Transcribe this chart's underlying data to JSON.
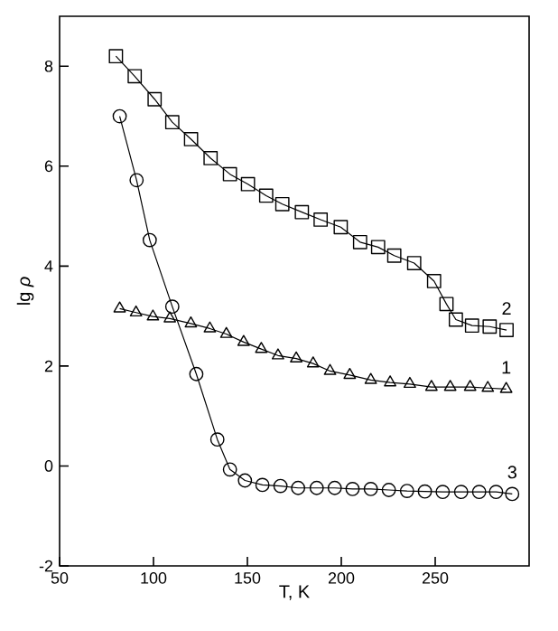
{
  "chart_data": {
    "type": "line",
    "xlabel": "T,  K",
    "ylabel": "lg *ρ*",
    "xlim": [
      50,
      300
    ],
    "ylim": [
      -2,
      9
    ],
    "xticks": [
      50,
      100,
      150,
      200,
      250
    ],
    "yticks": [
      -2,
      0,
      2,
      4,
      6,
      8
    ],
    "grid": false,
    "legend": false,
    "line_style": "solid",
    "series": [
      {
        "name": "1",
        "color": "#000000",
        "marker": "triangle",
        "x": [
          82,
          90.7,
          99.7,
          108.7,
          119.9,
          130,
          138.8,
          148,
          157.4,
          166.3,
          176,
          185,
          194,
          204.5,
          215.7,
          226,
          236.5,
          248,
          258,
          268.6,
          278,
          287.8
        ],
        "values": [
          3.15,
          3.07,
          2.99,
          2.95,
          2.85,
          2.75,
          2.64,
          2.48,
          2.34,
          2.21,
          2.15,
          2.05,
          1.9,
          1.82,
          1.72,
          1.67,
          1.64,
          1.58,
          1.58,
          1.58,
          1.56,
          1.54
        ]
      },
      {
        "name": "2",
        "color": "#000000",
        "marker": "square",
        "x": [
          80,
          90,
          100.6,
          110,
          120,
          130.4,
          140.7,
          150.3,
          160,
          168.6,
          179,
          189,
          199.7,
          210,
          219.6,
          228.2,
          238.8,
          249.4,
          256,
          261,
          269.6,
          279,
          288
        ],
        "values": [
          8.2,
          7.8,
          7.34,
          6.88,
          6.54,
          6.16,
          5.84,
          5.64,
          5.41,
          5.24,
          5.08,
          4.93,
          4.78,
          4.48,
          4.38,
          4.21,
          4.06,
          3.7,
          3.24,
          2.93,
          2.81,
          2.79,
          2.72
        ]
      },
      {
        "name": "3",
        "color": "#000000",
        "marker": "circle",
        "x": [
          82,
          91,
          98,
          110,
          122.8,
          134,
          140.7,
          148.7,
          158,
          167.6,
          177,
          186.9,
          196.5,
          206,
          215.7,
          225.3,
          235,
          244.5,
          254,
          263.8,
          273.4,
          282.4,
          291
        ],
        "values": [
          7.0,
          5.72,
          4.52,
          3.19,
          1.84,
          0.53,
          -0.07,
          -0.29,
          -0.38,
          -0.4,
          -0.44,
          -0.44,
          -0.44,
          -0.46,
          -0.46,
          -0.48,
          -0.5,
          -0.51,
          -0.52,
          -0.52,
          -0.52,
          -0.52,
          -0.56
        ]
      }
    ]
  }
}
